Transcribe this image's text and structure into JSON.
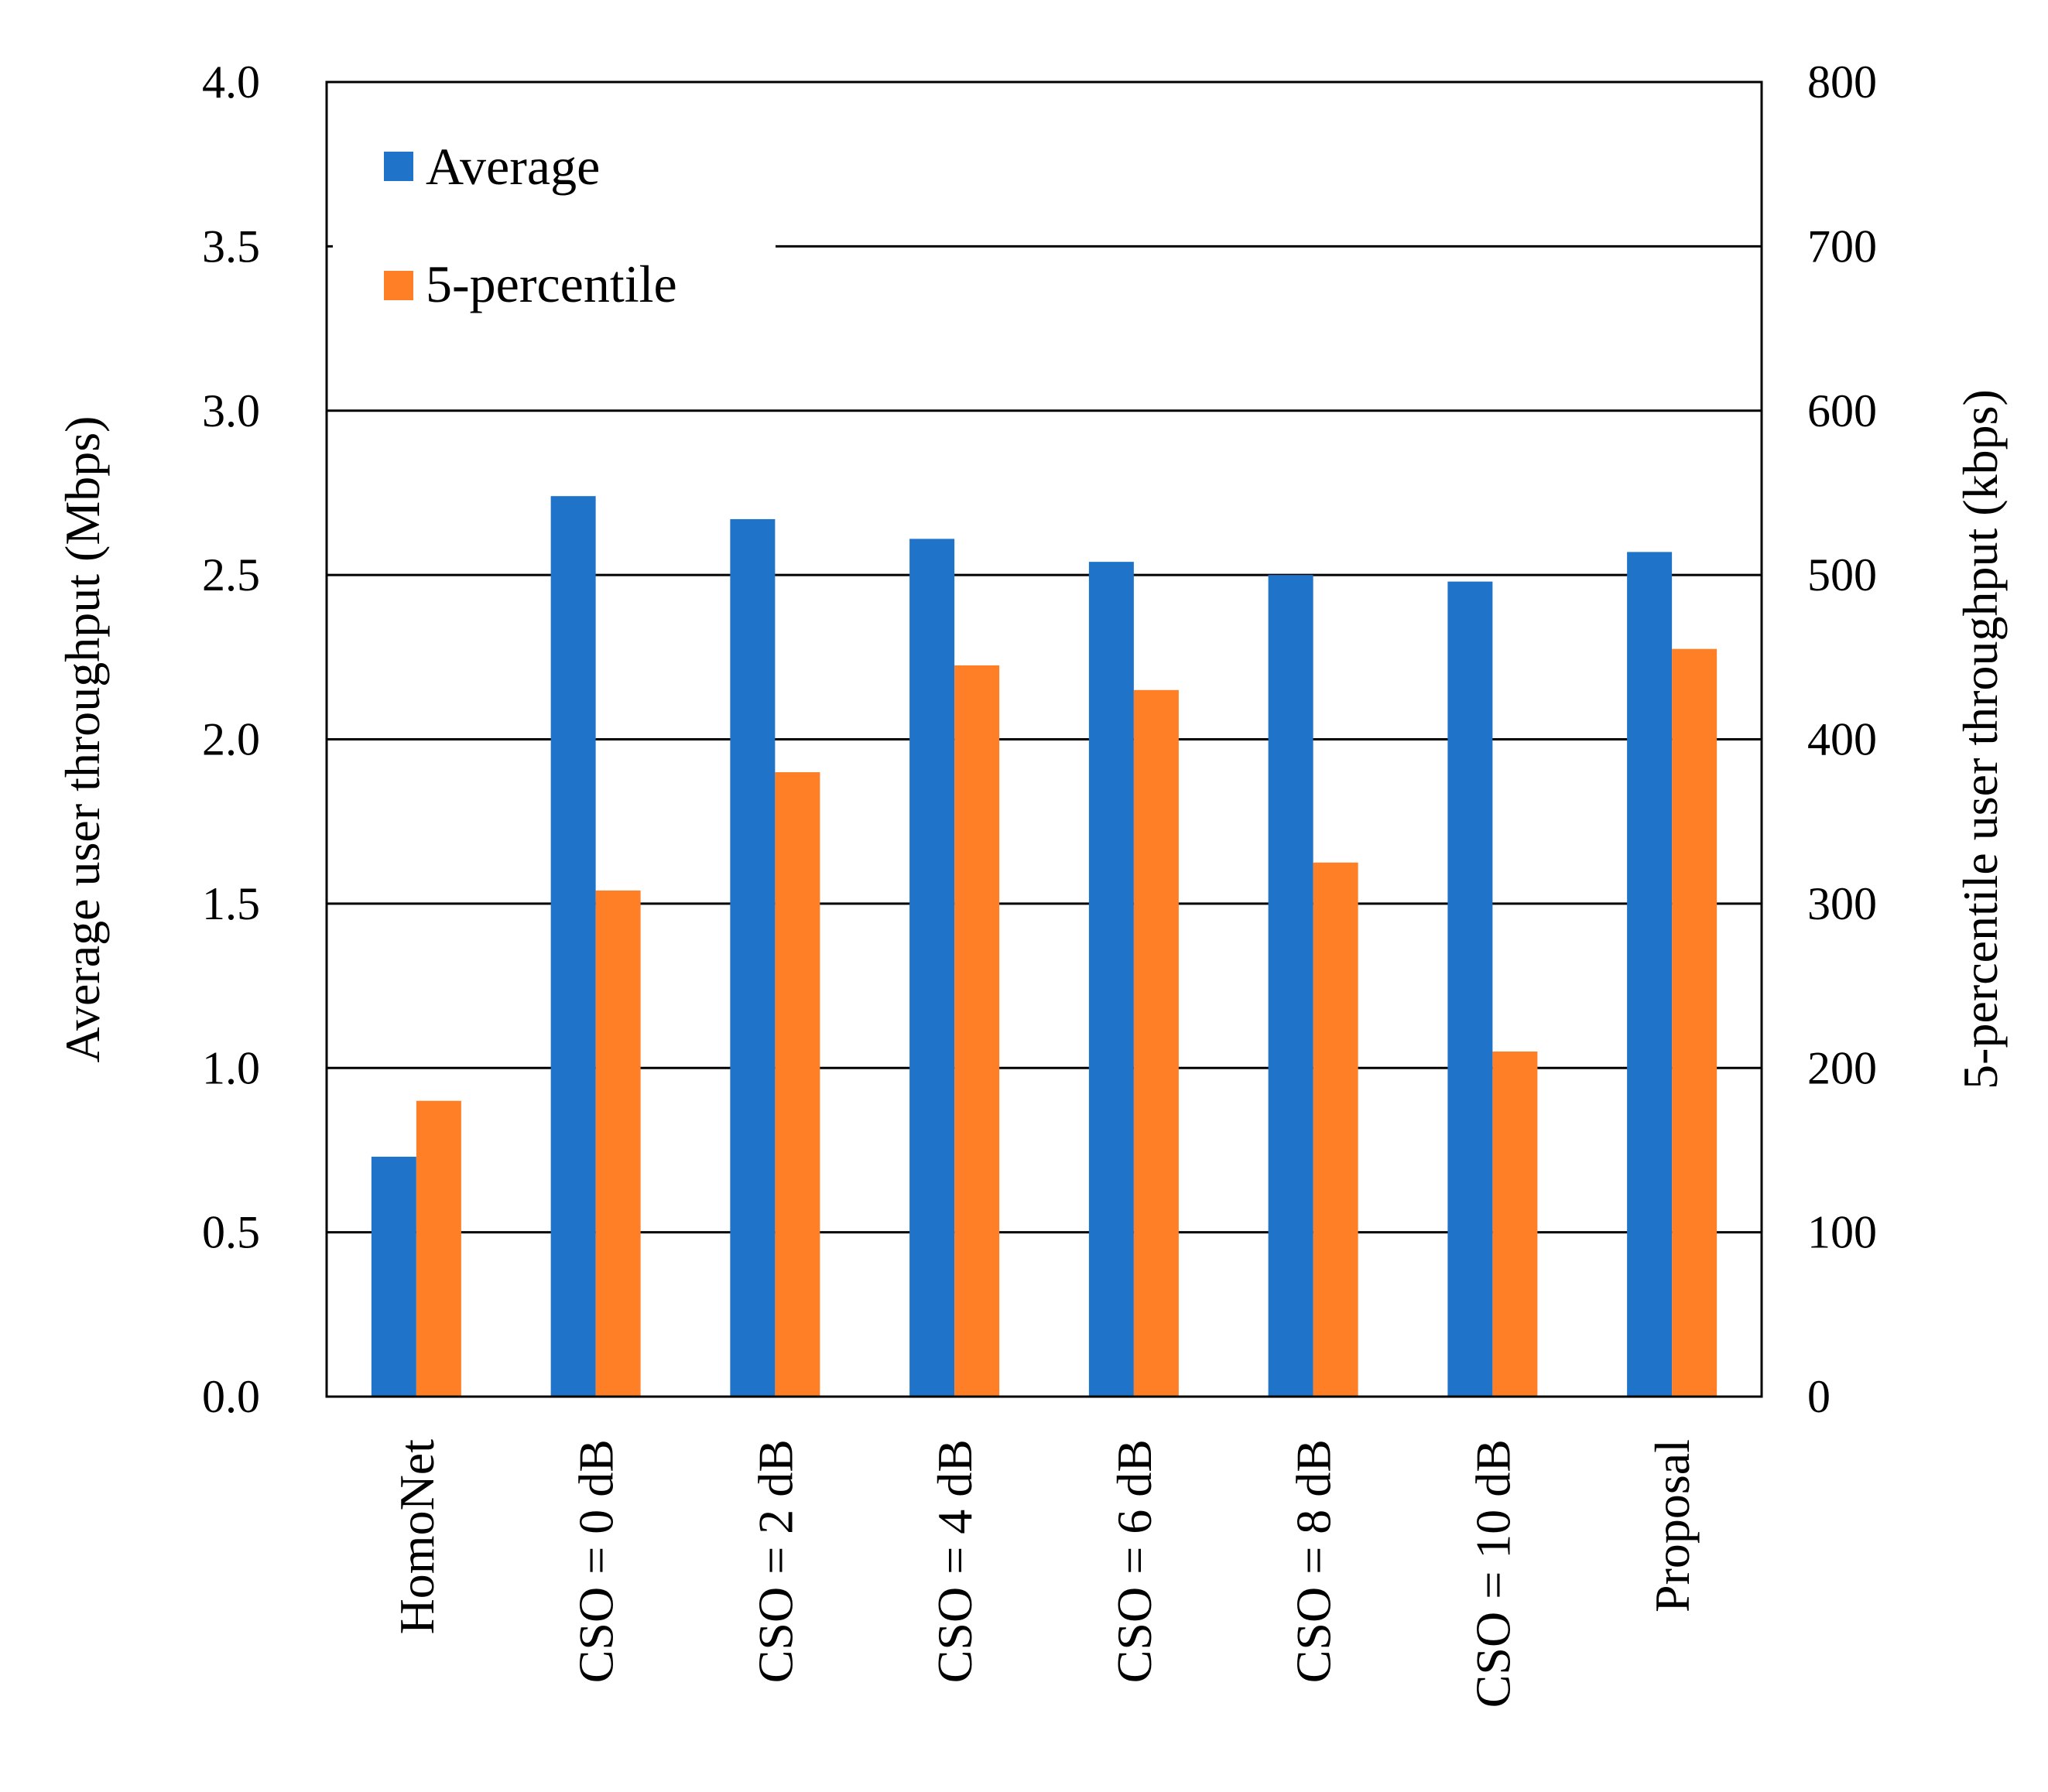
{
  "chart_data": {
    "type": "bar",
    "categories": [
      "HomoNet",
      "CSO = 0 dB",
      "CSO = 2 dB",
      "CSO = 4 dB",
      "CSO = 6 dB",
      "CSO = 8 dB",
      "CSO = 10 dB",
      "Proposal"
    ],
    "series": [
      {
        "name": "Average",
        "axis": "left",
        "unit": "Mbps",
        "color": "#1f74c9",
        "values": [
          0.73,
          2.74,
          2.67,
          2.61,
          2.54,
          2.5,
          2.48,
          2.57
        ]
      },
      {
        "name": "5-percentile",
        "axis": "right",
        "unit": "kbps",
        "color": "#ff7f27",
        "values": [
          180,
          308,
          380,
          445,
          430,
          325,
          210,
          455
        ]
      }
    ],
    "ylabel": "Average user throughput (Mbps)",
    "ylabel_right": "5-percentile user throughput (kbps)",
    "ylim": [
      0,
      4.0
    ],
    "ylim_right": [
      0,
      800
    ],
    "yticks": [
      "0.0",
      "0.5",
      "1.0",
      "1.5",
      "2.0",
      "2.5",
      "3.0",
      "3.5",
      "4.0"
    ],
    "yticks_right": [
      "0",
      "100",
      "200",
      "300",
      "400",
      "500",
      "600",
      "700",
      "800"
    ],
    "grid": true,
    "legend_position": "top-left"
  }
}
